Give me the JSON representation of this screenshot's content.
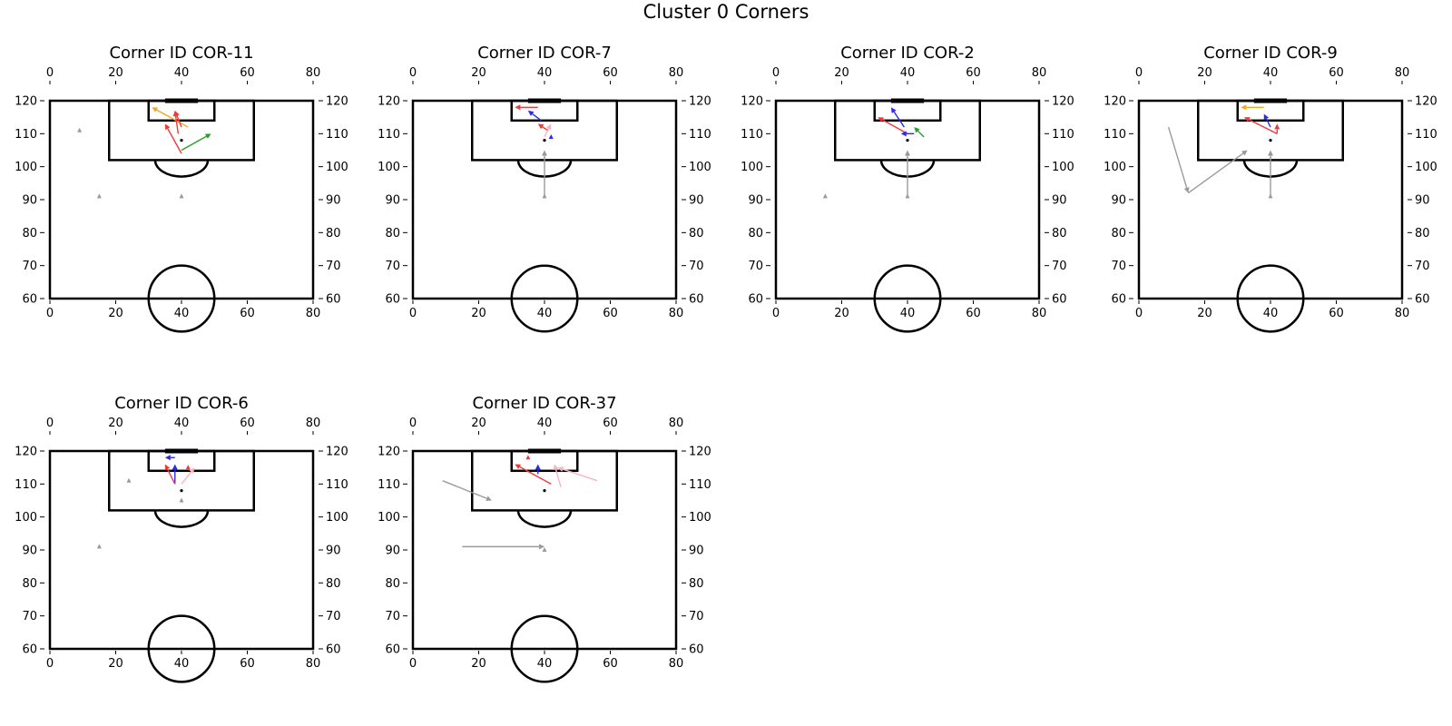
{
  "figure": {
    "title": "Cluster 0 Corners"
  },
  "axes_spec": {
    "x_ticks": [
      0,
      20,
      40,
      60,
      80
    ],
    "y_ticks": [
      60,
      70,
      80,
      90,
      100,
      110,
      120
    ],
    "xlim": [
      0,
      80
    ],
    "ylim": [
      60,
      120
    ]
  },
  "colors": {
    "line": "#000000",
    "red": "#f03a3a",
    "blue": "#2b2bf0",
    "green": "#2e9a2e",
    "orange": "#f5a623",
    "pink": "#f5b6c1",
    "gray": "#9a9a9a",
    "ball": "#000000"
  },
  "chart_data": [
    {
      "type": "scatter",
      "title": "Corner ID COR-11",
      "xlim": [
        0,
        80
      ],
      "ylim": [
        60,
        120
      ],
      "ball": [
        40,
        108
      ],
      "arrows": [
        {
          "x1": 42,
          "y1": 112,
          "x2": 31,
          "y2": 118,
          "color": "orange"
        },
        {
          "x1": 40,
          "y1": 112,
          "x2": 38,
          "y2": 117,
          "color": "red"
        },
        {
          "x1": 39,
          "y1": 110,
          "x2": 38,
          "y2": 117,
          "color": "red"
        },
        {
          "x1": 40,
          "y1": 104,
          "x2": 35,
          "y2": 113,
          "color": "red"
        },
        {
          "x1": 40,
          "y1": 105,
          "x2": 49,
          "y2": 110,
          "color": "green"
        }
      ],
      "markers": [
        {
          "x": 9,
          "y": 111,
          "color": "gray"
        },
        {
          "x": 15,
          "y": 91,
          "color": "gray"
        },
        {
          "x": 40,
          "y": 91,
          "color": "gray"
        }
      ]
    },
    {
      "type": "scatter",
      "title": "Corner ID COR-7",
      "xlim": [
        0,
        80
      ],
      "ylim": [
        60,
        120
      ],
      "ball": [
        40,
        108
      ],
      "arrows": [
        {
          "x1": 38,
          "y1": 118,
          "x2": 31,
          "y2": 118,
          "color": "red"
        },
        {
          "x1": 39,
          "y1": 114,
          "x2": 35,
          "y2": 117,
          "color": "blue"
        },
        {
          "x1": 41,
          "y1": 111,
          "x2": 38,
          "y2": 113,
          "color": "red"
        },
        {
          "x1": 40,
          "y1": 109,
          "x2": 42,
          "y2": 113,
          "color": "pink"
        },
        {
          "x1": 40,
          "y1": 91,
          "x2": 40,
          "y2": 105,
          "color": "gray"
        }
      ],
      "markers": [
        {
          "x": 42,
          "y": 109,
          "color": "blue"
        },
        {
          "x": 40,
          "y": 91,
          "color": "gray"
        }
      ]
    },
    {
      "type": "scatter",
      "title": "Corner ID COR-2",
      "xlim": [
        0,
        80
      ],
      "ylim": [
        60,
        120
      ],
      "ball": [
        40,
        108
      ],
      "arrows": [
        {
          "x1": 39,
          "y1": 112,
          "x2": 35,
          "y2": 118,
          "color": "blue"
        },
        {
          "x1": 40,
          "y1": 110,
          "x2": 31,
          "y2": 115,
          "color": "red"
        },
        {
          "x1": 42,
          "y1": 110,
          "x2": 38,
          "y2": 110,
          "color": "blue"
        },
        {
          "x1": 45,
          "y1": 109,
          "x2": 42,
          "y2": 112,
          "color": "green"
        },
        {
          "x1": 40,
          "y1": 91,
          "x2": 40,
          "y2": 105,
          "color": "gray"
        }
      ],
      "markers": [
        {
          "x": 15,
          "y": 91,
          "color": "gray"
        },
        {
          "x": 40,
          "y": 91,
          "color": "gray"
        }
      ]
    },
    {
      "type": "scatter",
      "title": "Corner ID COR-9",
      "xlim": [
        0,
        80
      ],
      "ylim": [
        60,
        120
      ],
      "ball": [
        40,
        108
      ],
      "arrows": [
        {
          "x1": 38,
          "y1": 118,
          "x2": 31,
          "y2": 118,
          "color": "orange"
        },
        {
          "x1": 40,
          "y1": 112,
          "x2": 38,
          "y2": 116,
          "color": "blue"
        },
        {
          "x1": 42,
          "y1": 110,
          "x2": 32,
          "y2": 115,
          "color": "red"
        },
        {
          "x1": 42,
          "y1": 110,
          "x2": 42,
          "y2": 113,
          "color": "red"
        },
        {
          "x1": 9,
          "y1": 112,
          "x2": 15,
          "y2": 92,
          "color": "gray"
        },
        {
          "x1": 15,
          "y1": 92,
          "x2": 33,
          "y2": 105,
          "color": "gray"
        },
        {
          "x1": 40,
          "y1": 91,
          "x2": 40,
          "y2": 105,
          "color": "gray"
        }
      ],
      "markers": [
        {
          "x": 40,
          "y": 91,
          "color": "gray"
        }
      ]
    },
    {
      "type": "scatter",
      "title": "Corner ID COR-6",
      "xlim": [
        0,
        80
      ],
      "ylim": [
        60,
        120
      ],
      "ball": [
        40,
        108
      ],
      "arrows": [
        {
          "x1": 38,
          "y1": 118,
          "x2": 35,
          "y2": 118,
          "color": "blue"
        },
        {
          "x1": 38,
          "y1": 110,
          "x2": 38,
          "y2": 116,
          "color": "blue"
        },
        {
          "x1": 38,
          "y1": 110,
          "x2": 35,
          "y2": 116,
          "color": "red"
        },
        {
          "x1": 40,
          "y1": 110,
          "x2": 44,
          "y2": 115,
          "color": "pink"
        }
      ],
      "markers": [
        {
          "x": 42,
          "y": 115,
          "color": "red"
        },
        {
          "x": 24,
          "y": 111,
          "color": "gray"
        },
        {
          "x": 40,
          "y": 105,
          "color": "gray"
        },
        {
          "x": 15,
          "y": 91,
          "color": "gray"
        }
      ]
    },
    {
      "type": "scatter",
      "title": "Corner ID COR-37",
      "xlim": [
        0,
        80
      ],
      "ylim": [
        60,
        120
      ],
      "ball": [
        40,
        108
      ],
      "arrows": [
        {
          "x1": 42,
          "y1": 110,
          "x2": 31,
          "y2": 116,
          "color": "red"
        },
        {
          "x1": 38,
          "y1": 113,
          "x2": 38,
          "y2": 116,
          "color": "blue"
        },
        {
          "x1": 45,
          "y1": 109,
          "x2": 43,
          "y2": 116,
          "color": "pink"
        },
        {
          "x1": 56,
          "y1": 111,
          "x2": 44,
          "y2": 115,
          "color": "pink"
        },
        {
          "x1": 9,
          "y1": 111,
          "x2": 24,
          "y2": 105,
          "color": "gray"
        },
        {
          "x1": 15,
          "y1": 91,
          "x2": 40,
          "y2": 91,
          "color": "gray"
        }
      ],
      "markers": [
        {
          "x": 35,
          "y": 118,
          "color": "red"
        },
        {
          "x": 40,
          "y": 90,
          "color": "gray"
        }
      ]
    }
  ]
}
